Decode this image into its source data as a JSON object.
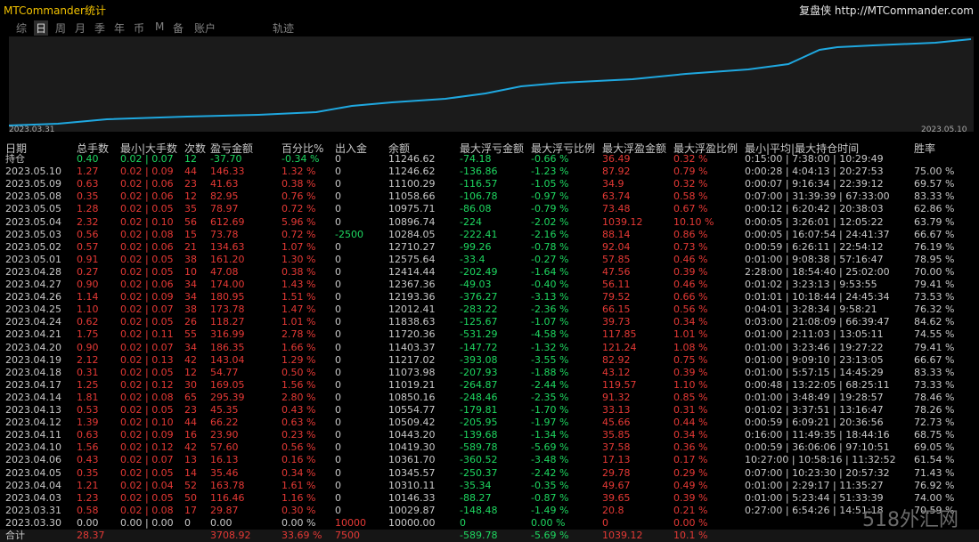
{
  "titlebar": {
    "app_title": "MTCommander统计",
    "brand_text": "复盘侠 http://MTCommander.com"
  },
  "tabs": [
    "综",
    "日",
    "周",
    "月",
    "季",
    "年",
    "币",
    "M",
    "备",
    "账户",
    "轨迹"
  ],
  "active_tab": "日",
  "chart": {
    "start_label": "2023.03.31",
    "end_label": "2023.05.10",
    "line_color": "#1fa8e0"
  },
  "headers": [
    "日期",
    "总手数",
    "最小|大手数",
    "次数",
    "盈亏金额",
    "百分比%",
    "出入金",
    "余额",
    "最大浮亏金额",
    "最大浮亏比例",
    "最大浮盈金额",
    "最大浮盈比例",
    "最小|平均|最大持仓时间",
    "胜率"
  ],
  "colors": {
    "green": "#1ed760",
    "red": "#e53935",
    "white": "#c8c8c8"
  },
  "rows": [
    {
      "date": "持仓",
      "lots": "0.40",
      "minmax": "0.02 | 0.07",
      "count": "12",
      "pnl": "-37.70",
      "pct": "-0.34 %",
      "inout": "0",
      "balance": "11246.62",
      "maxloss": "-74.18",
      "maxloss_pct": "-0.66 %",
      "maxprofit": "36.49",
      "maxprofit_pct": "0.32 %",
      "hold": "0:15:00 | 7:38:00 | 10:29:49",
      "winrate": "",
      "color": "green"
    },
    {
      "date": "2023.05.10",
      "lots": "1.27",
      "minmax": "0.02 | 0.09",
      "count": "44",
      "pnl": "146.33",
      "pct": "1.32 %",
      "inout": "0",
      "balance": "11246.62",
      "maxloss": "-136.86",
      "maxloss_pct": "-1.23 %",
      "maxprofit": "87.92",
      "maxprofit_pct": "0.79 %",
      "hold": "0:00:28 | 4:04:13 | 20:27:53",
      "winrate": "75.00 %",
      "color": "red"
    },
    {
      "date": "2023.05.09",
      "lots": "0.63",
      "minmax": "0.02 | 0.06",
      "count": "23",
      "pnl": "41.63",
      "pct": "0.38 %",
      "inout": "0",
      "balance": "11100.29",
      "maxloss": "-116.57",
      "maxloss_pct": "-1.05 %",
      "maxprofit": "34.9",
      "maxprofit_pct": "0.32 %",
      "hold": "0:00:07 | 9:16:34 | 22:39:12",
      "winrate": "69.57 %",
      "color": "red"
    },
    {
      "date": "2023.05.08",
      "lots": "0.35",
      "minmax": "0.02 | 0.06",
      "count": "12",
      "pnl": "82.95",
      "pct": "0.76 %",
      "inout": "0",
      "balance": "11058.66",
      "maxloss": "-106.78",
      "maxloss_pct": "-0.97 %",
      "maxprofit": "63.74",
      "maxprofit_pct": "0.58 %",
      "hold": "0:07:00 | 31:39:39 | 67:33:00",
      "winrate": "83.33 %",
      "color": "red"
    },
    {
      "date": "2023.05.05",
      "lots": "1.28",
      "minmax": "0.02 | 0.05",
      "count": "35",
      "pnl": "78.97",
      "pct": "0.72 %",
      "inout": "0",
      "balance": "10975.71",
      "maxloss": "-86.08",
      "maxloss_pct": "-0.79 %",
      "maxprofit": "73.48",
      "maxprofit_pct": "0.67 %",
      "hold": "0:00:12 | 6:20:42 | 20:38:03",
      "winrate": "62.86 %",
      "color": "red"
    },
    {
      "date": "2023.05.04",
      "lots": "2.32",
      "minmax": "0.02 | 0.10",
      "count": "56",
      "pnl": "612.69",
      "pct": "5.96 %",
      "inout": "0",
      "balance": "10896.74",
      "maxloss": "-224",
      "maxloss_pct": "-2.02 %",
      "maxprofit": "1039.12",
      "maxprofit_pct": "10.10 %",
      "hold": "0:00:05 | 3:26:01 | 12:05:22",
      "winrate": "63.79 %",
      "color": "red"
    },
    {
      "date": "2023.05.03",
      "lots": "0.56",
      "minmax": "0.02 | 0.08",
      "count": "15",
      "pnl": "73.78",
      "pct": "0.72 %",
      "inout": "-2500",
      "balance": "10284.05",
      "maxloss": "-222.41",
      "maxloss_pct": "-2.16 %",
      "maxprofit": "88.14",
      "maxprofit_pct": "0.86 %",
      "hold": "0:00:05 | 16:07:54 | 24:41:37",
      "winrate": "66.67 %",
      "color": "red",
      "inout_color": "green"
    },
    {
      "date": "2023.05.02",
      "lots": "0.57",
      "minmax": "0.02 | 0.06",
      "count": "21",
      "pnl": "134.63",
      "pct": "1.07 %",
      "inout": "0",
      "balance": "12710.27",
      "maxloss": "-99.26",
      "maxloss_pct": "-0.78 %",
      "maxprofit": "92.04",
      "maxprofit_pct": "0.73 %",
      "hold": "0:00:59 | 6:26:11 | 22:54:12",
      "winrate": "76.19 %",
      "color": "red"
    },
    {
      "date": "2023.05.01",
      "lots": "0.91",
      "minmax": "0.02 | 0.05",
      "count": "38",
      "pnl": "161.20",
      "pct": "1.30 %",
      "inout": "0",
      "balance": "12575.64",
      "maxloss": "-33.4",
      "maxloss_pct": "-0.27 %",
      "maxprofit": "57.85",
      "maxprofit_pct": "0.46 %",
      "hold": "0:01:00 | 9:08:38 | 57:16:47",
      "winrate": "78.95 %",
      "color": "red"
    },
    {
      "date": "2023.04.28",
      "lots": "0.27",
      "minmax": "0.02 | 0.05",
      "count": "10",
      "pnl": "47.08",
      "pct": "0.38 %",
      "inout": "0",
      "balance": "12414.44",
      "maxloss": "-202.49",
      "maxloss_pct": "-1.64 %",
      "maxprofit": "47.56",
      "maxprofit_pct": "0.39 %",
      "hold": "2:28:00 | 18:54:40 | 25:02:00",
      "winrate": "70.00 %",
      "color": "red"
    },
    {
      "date": "2023.04.27",
      "lots": "0.90",
      "minmax": "0.02 | 0.06",
      "count": "34",
      "pnl": "174.00",
      "pct": "1.43 %",
      "inout": "0",
      "balance": "12367.36",
      "maxloss": "-49.03",
      "maxloss_pct": "-0.40 %",
      "maxprofit": "56.11",
      "maxprofit_pct": "0.46 %",
      "hold": "0:01:02 | 3:23:13 | 9:53:55",
      "winrate": "79.41 %",
      "color": "red"
    },
    {
      "date": "2023.04.26",
      "lots": "1.14",
      "minmax": "0.02 | 0.09",
      "count": "34",
      "pnl": "180.95",
      "pct": "1.51 %",
      "inout": "0",
      "balance": "12193.36",
      "maxloss": "-376.27",
      "maxloss_pct": "-3.13 %",
      "maxprofit": "79.52",
      "maxprofit_pct": "0.66 %",
      "hold": "0:01:01 | 10:18:44 | 24:45:34",
      "winrate": "73.53 %",
      "color": "red"
    },
    {
      "date": "2023.04.25",
      "lots": "1.10",
      "minmax": "0.02 | 0.07",
      "count": "38",
      "pnl": "173.78",
      "pct": "1.47 %",
      "inout": "0",
      "balance": "12012.41",
      "maxloss": "-283.22",
      "maxloss_pct": "-2.36 %",
      "maxprofit": "66.15",
      "maxprofit_pct": "0.56 %",
      "hold": "0:04:01 | 3:28:34 | 9:58:21",
      "winrate": "76.32 %",
      "color": "red"
    },
    {
      "date": "2023.04.24",
      "lots": "0.62",
      "minmax": "0.02 | 0.05",
      "count": "26",
      "pnl": "118.27",
      "pct": "1.01 %",
      "inout": "0",
      "balance": "11838.63",
      "maxloss": "-125.67",
      "maxloss_pct": "-1.07 %",
      "maxprofit": "39.73",
      "maxprofit_pct": "0.34 %",
      "hold": "0:03:00 | 21:08:09 | 66:39:47",
      "winrate": "84.62 %",
      "color": "red"
    },
    {
      "date": "2023.04.21",
      "lots": "1.75",
      "minmax": "0.02 | 0.11",
      "count": "55",
      "pnl": "316.99",
      "pct": "2.78 %",
      "inout": "0",
      "balance": "11720.36",
      "maxloss": "-531.29",
      "maxloss_pct": "-4.58 %",
      "maxprofit": "117.85",
      "maxprofit_pct": "1.01 %",
      "hold": "0:01:00 | 2:11:03 | 13:05:11",
      "winrate": "74.55 %",
      "color": "red"
    },
    {
      "date": "2023.04.20",
      "lots": "0.90",
      "minmax": "0.02 | 0.07",
      "count": "34",
      "pnl": "186.35",
      "pct": "1.66 %",
      "inout": "0",
      "balance": "11403.37",
      "maxloss": "-147.72",
      "maxloss_pct": "-1.32 %",
      "maxprofit": "121.24",
      "maxprofit_pct": "1.08 %",
      "hold": "0:01:00 | 3:23:46 | 19:27:22",
      "winrate": "79.41 %",
      "color": "red"
    },
    {
      "date": "2023.04.19",
      "lots": "2.12",
      "minmax": "0.02 | 0.13",
      "count": "42",
      "pnl": "143.04",
      "pct": "1.29 %",
      "inout": "0",
      "balance": "11217.02",
      "maxloss": "-393.08",
      "maxloss_pct": "-3.55 %",
      "maxprofit": "82.92",
      "maxprofit_pct": "0.75 %",
      "hold": "0:01:00 | 9:09:10 | 23:13:05",
      "winrate": "66.67 %",
      "color": "red"
    },
    {
      "date": "2023.04.18",
      "lots": "0.31",
      "minmax": "0.02 | 0.05",
      "count": "12",
      "pnl": "54.77",
      "pct": "0.50 %",
      "inout": "0",
      "balance": "11073.98",
      "maxloss": "-207.93",
      "maxloss_pct": "-1.88 %",
      "maxprofit": "43.12",
      "maxprofit_pct": "0.39 %",
      "hold": "0:01:00 | 5:57:15 | 14:45:29",
      "winrate": "83.33 %",
      "color": "red"
    },
    {
      "date": "2023.04.17",
      "lots": "1.25",
      "minmax": "0.02 | 0.12",
      "count": "30",
      "pnl": "169.05",
      "pct": "1.56 %",
      "inout": "0",
      "balance": "11019.21",
      "maxloss": "-264.87",
      "maxloss_pct": "-2.44 %",
      "maxprofit": "119.57",
      "maxprofit_pct": "1.10 %",
      "hold": "0:00:48 | 13:22:05 | 68:25:11",
      "winrate": "73.33 %",
      "color": "red"
    },
    {
      "date": "2023.04.14",
      "lots": "1.81",
      "minmax": "0.02 | 0.08",
      "count": "65",
      "pnl": "295.39",
      "pct": "2.80 %",
      "inout": "0",
      "balance": "10850.16",
      "maxloss": "-248.46",
      "maxloss_pct": "-2.35 %",
      "maxprofit": "91.32",
      "maxprofit_pct": "0.85 %",
      "hold": "0:01:00 | 3:48:49 | 19:28:57",
      "winrate": "78.46 %",
      "color": "red"
    },
    {
      "date": "2023.04.13",
      "lots": "0.53",
      "minmax": "0.02 | 0.05",
      "count": "23",
      "pnl": "45.35",
      "pct": "0.43 %",
      "inout": "0",
      "balance": "10554.77",
      "maxloss": "-179.81",
      "maxloss_pct": "-1.70 %",
      "maxprofit": "33.13",
      "maxprofit_pct": "0.31 %",
      "hold": "0:01:02 | 3:37:51 | 13:16:47",
      "winrate": "78.26 %",
      "color": "red"
    },
    {
      "date": "2023.04.12",
      "lots": "1.39",
      "minmax": "0.02 | 0.10",
      "count": "44",
      "pnl": "66.22",
      "pct": "0.63 %",
      "inout": "0",
      "balance": "10509.42",
      "maxloss": "-205.95",
      "maxloss_pct": "-1.97 %",
      "maxprofit": "45.66",
      "maxprofit_pct": "0.44 %",
      "hold": "0:00:59 | 6:09:21 | 20:36:56",
      "winrate": "72.73 %",
      "color": "red"
    },
    {
      "date": "2023.04.11",
      "lots": "0.63",
      "minmax": "0.02 | 0.09",
      "count": "16",
      "pnl": "23.90",
      "pct": "0.23 %",
      "inout": "0",
      "balance": "10443.20",
      "maxloss": "-139.68",
      "maxloss_pct": "-1.34 %",
      "maxprofit": "35.85",
      "maxprofit_pct": "0.34 %",
      "hold": "0:16:00 | 11:49:35 | 18:44:16",
      "winrate": "68.75 %",
      "color": "red"
    },
    {
      "date": "2023.04.10",
      "lots": "1.56",
      "minmax": "0.02 | 0.12",
      "count": "42",
      "pnl": "57.60",
      "pct": "0.56 %",
      "inout": "0",
      "balance": "10419.30",
      "maxloss": "-589.78",
      "maxloss_pct": "-5.69 %",
      "maxprofit": "37.58",
      "maxprofit_pct": "0.36 %",
      "hold": "0:00:59 | 36:06:06 | 97:10:51",
      "winrate": "69.05 %",
      "color": "red"
    },
    {
      "date": "2023.04.06",
      "lots": "0.43",
      "minmax": "0.02 | 0.07",
      "count": "13",
      "pnl": "16.13",
      "pct": "0.16 %",
      "inout": "0",
      "balance": "10361.70",
      "maxloss": "-360.52",
      "maxloss_pct": "-3.48 %",
      "maxprofit": "17.13",
      "maxprofit_pct": "0.17 %",
      "hold": "10:27:00 | 10:58:16 | 11:32:52",
      "winrate": "61.54 %",
      "color": "red"
    },
    {
      "date": "2023.04.05",
      "lots": "0.35",
      "minmax": "0.02 | 0.05",
      "count": "14",
      "pnl": "35.46",
      "pct": "0.34 %",
      "inout": "0",
      "balance": "10345.57",
      "maxloss": "-250.37",
      "maxloss_pct": "-2.42 %",
      "maxprofit": "29.78",
      "maxprofit_pct": "0.29 %",
      "hold": "0:07:00 | 10:23:30 | 20:57:32",
      "winrate": "71.43 %",
      "color": "red"
    },
    {
      "date": "2023.04.04",
      "lots": "1.21",
      "minmax": "0.02 | 0.04",
      "count": "52",
      "pnl": "163.78",
      "pct": "1.61 %",
      "inout": "0",
      "balance": "10310.11",
      "maxloss": "-35.34",
      "maxloss_pct": "-0.35 %",
      "maxprofit": "49.67",
      "maxprofit_pct": "0.49 %",
      "hold": "0:01:00 | 2:29:17 | 11:35:27",
      "winrate": "76.92 %",
      "color": "red"
    },
    {
      "date": "2023.04.03",
      "lots": "1.23",
      "minmax": "0.02 | 0.05",
      "count": "50",
      "pnl": "116.46",
      "pct": "1.16 %",
      "inout": "0",
      "balance": "10146.33",
      "maxloss": "-88.27",
      "maxloss_pct": "-0.87 %",
      "maxprofit": "39.65",
      "maxprofit_pct": "0.39 %",
      "hold": "0:01:00 | 5:23:44 | 51:33:39",
      "winrate": "74.00 %",
      "color": "red"
    },
    {
      "date": "2023.03.31",
      "lots": "0.58",
      "minmax": "0.02 | 0.08",
      "count": "17",
      "pnl": "29.87",
      "pct": "0.30 %",
      "inout": "0",
      "balance": "10029.87",
      "maxloss": "-148.48",
      "maxloss_pct": "-1.49 %",
      "maxprofit": "20.8",
      "maxprofit_pct": "0.21 %",
      "hold": "0:27:00 | 6:54:26 | 14:51:18",
      "winrate": "70.59 %",
      "color": "red"
    },
    {
      "date": "2023.03.30",
      "lots": "0.00",
      "minmax": "0.00 | 0.00",
      "count": "0",
      "pnl": "0.00",
      "pct": "0.00 %",
      "inout": "10000",
      "balance": "10000.00",
      "maxloss": "0",
      "maxloss_pct": "0.00 %",
      "maxprofit": "0",
      "maxprofit_pct": "0.00 %",
      "hold": "",
      "winrate": "",
      "color": "white",
      "inout_color": "red"
    }
  ],
  "total": {
    "date": "合计",
    "lots": "28.37",
    "minmax": "",
    "count": "",
    "pnl": "3708.92",
    "pct": "33.69 %",
    "inout": "7500",
    "balance": "",
    "maxloss": "-589.78",
    "maxloss_pct": "-5.69 %",
    "maxprofit": "1039.12",
    "maxprofit_pct": "10.1 %",
    "hold": "",
    "winrate": ""
  },
  "watermark": "518外汇网"
}
